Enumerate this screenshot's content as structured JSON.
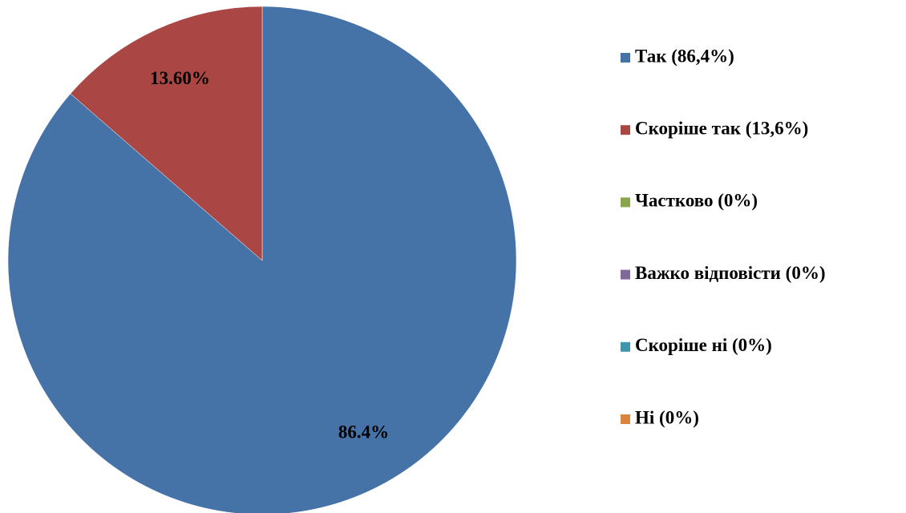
{
  "chart_data": {
    "type": "pie",
    "categories": [
      "Так (86,4%)",
      "Скоріше так (13,6%)",
      "Частково (0%)",
      "Важко відповісти (0%)",
      "Скоріше ні (0%)",
      "Ні (0%)"
    ],
    "values": [
      86.4,
      13.6,
      0,
      0,
      0,
      0
    ],
    "value_labels": [
      "86.4%",
      "13.60%",
      null,
      null,
      null,
      null
    ],
    "colors": [
      "#4572a7",
      "#aa4643",
      "#89a54e",
      "#80699b",
      "#3d96ae",
      "#db843d"
    ],
    "legend": "right"
  }
}
